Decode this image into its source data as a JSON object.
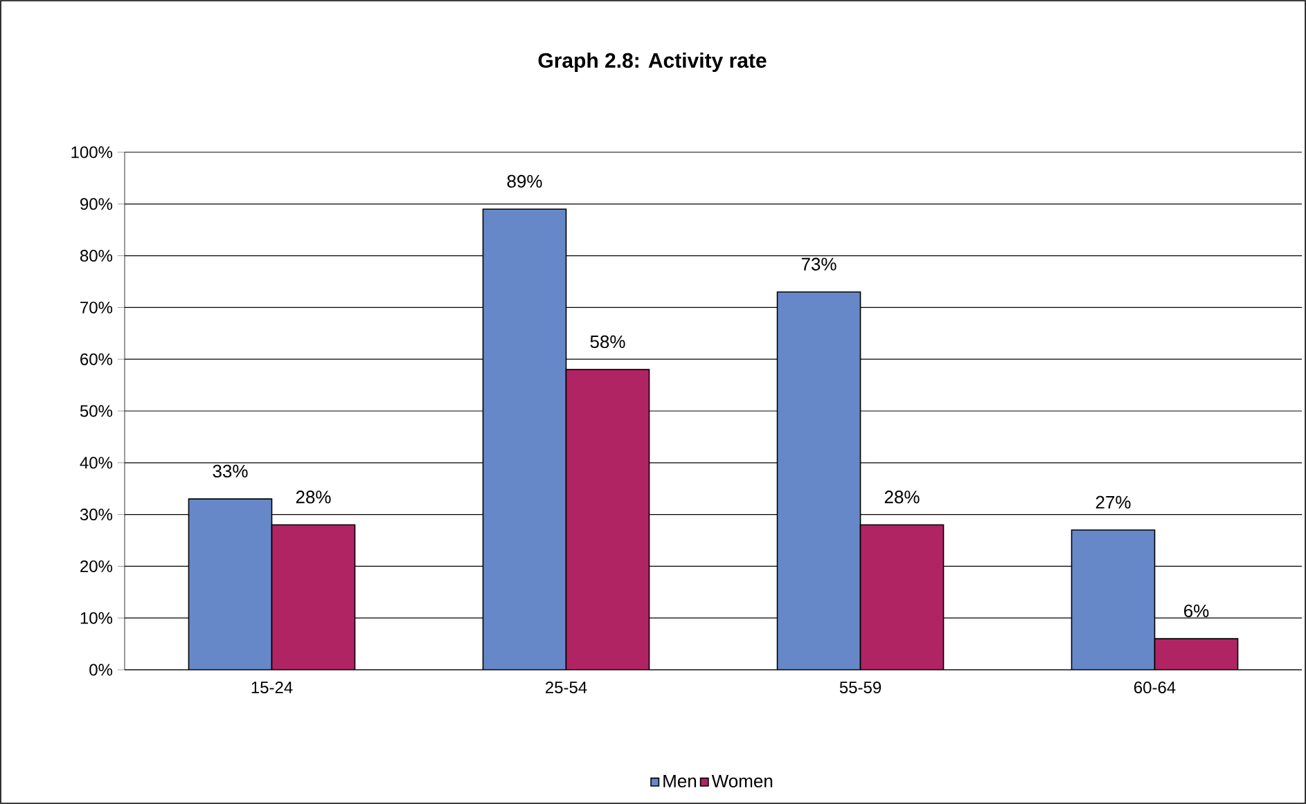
{
  "chart_data": {
    "type": "bar",
    "title": "Graph 2.8: Activity rate",
    "categories": [
      "15-24",
      "25-54",
      "55-59",
      "60-64"
    ],
    "series": [
      {
        "name": "Men",
        "color": "#6688c8",
        "values": [
          33,
          89,
          73,
          27
        ],
        "value_labels": [
          "33%",
          "89%",
          "73%",
          "27%"
        ]
      },
      {
        "name": "Women",
        "color": "#b02464",
        "values": [
          28,
          58,
          28,
          6
        ],
        "value_labels": [
          "28%",
          "58%",
          "28%",
          "6%"
        ]
      }
    ],
    "ylim": [
      0,
      100
    ],
    "yticks": [
      {
        "value": 0,
        "label": "0%"
      },
      {
        "value": 10,
        "label": "10%"
      },
      {
        "value": 20,
        "label": "20%"
      },
      {
        "value": 30,
        "label": "30%"
      },
      {
        "value": 40,
        "label": "40%"
      },
      {
        "value": 50,
        "label": "50%"
      },
      {
        "value": 60,
        "label": "60%"
      },
      {
        "value": 70,
        "label": "70%"
      },
      {
        "value": 80,
        "label": "80%"
      },
      {
        "value": 90,
        "label": "90%"
      },
      {
        "value": 100,
        "label": "100%"
      }
    ],
    "grid": "y",
    "legend": "bottom"
  }
}
